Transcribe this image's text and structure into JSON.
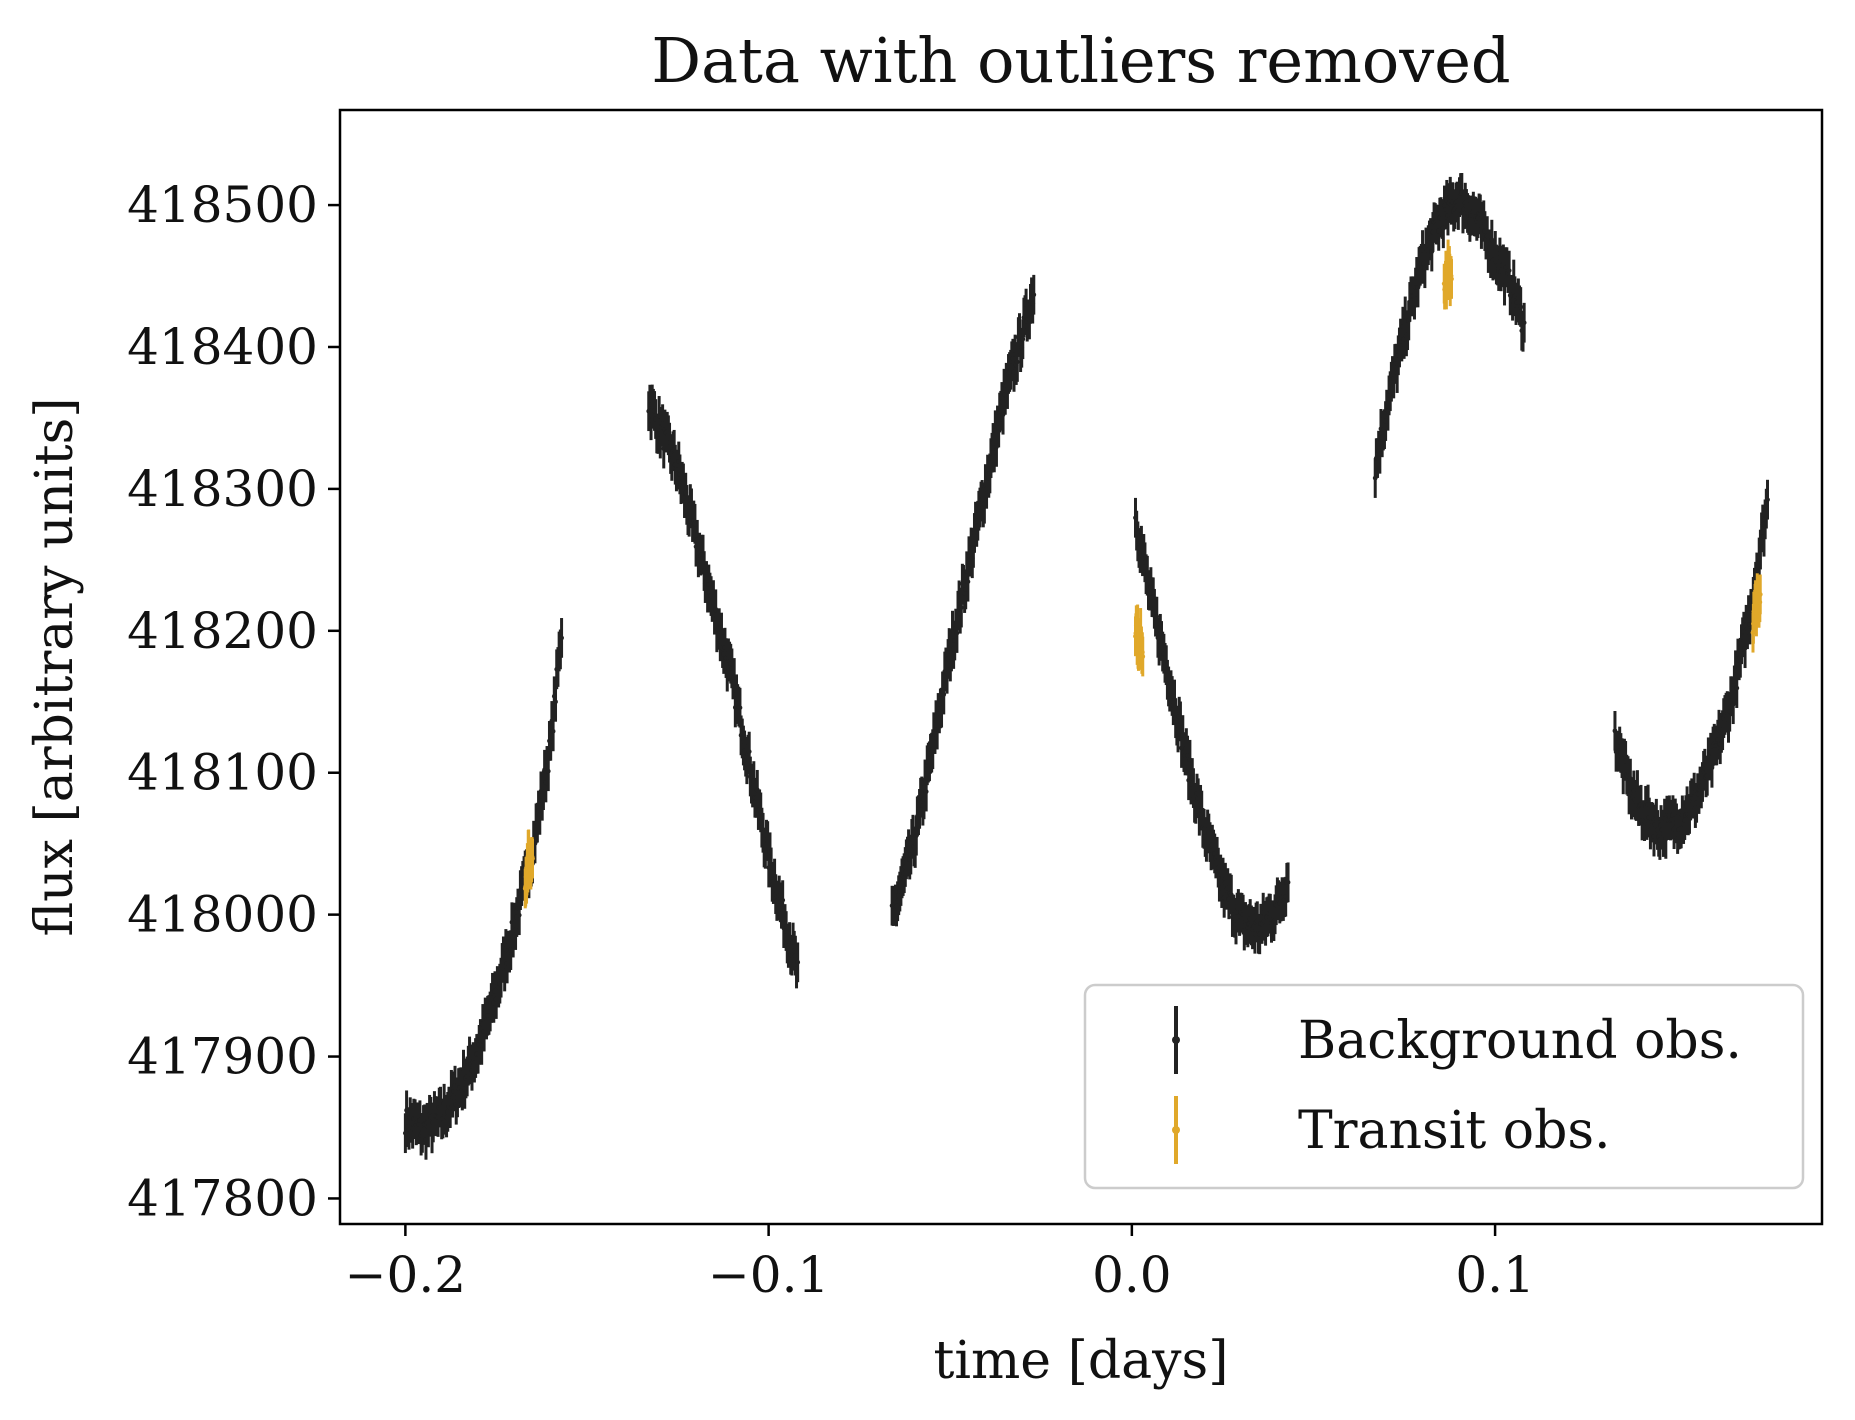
{
  "chart_data": {
    "type": "scatter",
    "title": "Data with outliers removed",
    "xlabel": "time [days]",
    "ylabel": "flux [arbitrary units]",
    "xlim": [
      -0.218,
      0.19
    ],
    "ylim": [
      417782,
      418567
    ],
    "xticks": [
      -0.2,
      -0.1,
      0.0,
      0.1
    ],
    "xtick_labels": [
      "−0.2",
      "−0.1",
      "0.0",
      "0.1"
    ],
    "yticks": [
      417800,
      417900,
      418000,
      418100,
      418200,
      418300,
      418400,
      418500
    ],
    "ytick_labels": [
      "417800",
      "417900",
      "418000",
      "418100",
      "418200",
      "418300",
      "418400",
      "418500"
    ],
    "grid": false,
    "legend_position": "bottom-right",
    "error_bar": 14,
    "series": [
      {
        "name": "Background obs.",
        "color": "#222222",
        "segments": [
          {
            "x": [
              -0.2,
              -0.195,
              -0.19,
              -0.185,
              -0.18,
              -0.175,
              -0.17,
              -0.165,
              -0.16,
              -0.157
            ],
            "y": [
              417855,
              417848,
              417858,
              417878,
              417905,
              417945,
              417992,
              418045,
              418120,
              418200
            ]
          },
          {
            "x": [
              -0.133,
              -0.125,
              -0.118,
              -0.11,
              -0.1,
              -0.092
            ],
            "y": [
              418360,
              418315,
              418245,
              418165,
              418040,
              417960
            ]
          },
          {
            "x": [
              -0.066,
              -0.06,
              -0.055,
              -0.05,
              -0.045,
              -0.04,
              -0.035,
              -0.03,
              -0.027
            ],
            "y": [
              417998,
              418050,
              418115,
              418185,
              418245,
              418305,
              418365,
              418410,
              418440
            ]
          },
          {
            "x": [
              0.001,
              0.005,
              0.01,
              0.015,
              0.02,
              0.025,
              0.03,
              0.035,
              0.04,
              0.043
            ],
            "y": [
              418280,
              418225,
              418170,
              418110,
              418060,
              418020,
              417995,
              417990,
              418005,
              418025
            ]
          },
          {
            "x": [
              0.067,
              0.07,
              0.075,
              0.08,
              0.085,
              0.09,
              0.095,
              0.1,
              0.105,
              0.108
            ],
            "y": [
              418315,
              418355,
              418410,
              418460,
              418490,
              418505,
              418490,
              418465,
              418440,
              418415
            ]
          },
          {
            "x": [
              0.133,
              0.137,
              0.14,
              0.145,
              0.15,
              0.155,
              0.16,
              0.165,
              0.17,
              0.175
            ],
            "y": [
              418125,
              418090,
              418075,
              418060,
              418065,
              418080,
              418110,
              418150,
              418210,
              418290
            ]
          }
        ]
      },
      {
        "name": "Transit obs.",
        "color": "#e0a82a",
        "segments": [
          {
            "x": [
              -0.167,
              -0.1665,
              -0.166,
              -0.1655,
              -0.165
            ],
            "y": [
              418025,
              418032,
              418040,
              418035,
              418045
            ]
          },
          {
            "x": [
              0.001,
              0.0015,
              0.002,
              0.0025,
              0.003
            ],
            "y": [
              418205,
              418198,
              418190,
              418195,
              418185
            ]
          },
          {
            "x": [
              0.086,
              0.0865,
              0.087,
              0.0875,
              0.088
            ],
            "y": [
              418450,
              418445,
              418455,
              418448,
              418452
            ]
          },
          {
            "x": [
              0.171,
              0.1715,
              0.172,
              0.1725,
              0.173
            ],
            "y": [
              418205,
              418212,
              418220,
              418215,
              418225
            ]
          }
        ]
      }
    ]
  }
}
